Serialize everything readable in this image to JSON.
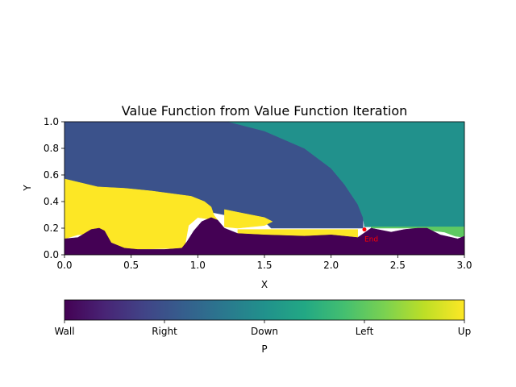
{
  "chart_data": {
    "type": "heatmap",
    "title": "Value Function from Value Function Iteration",
    "xlabel": "X",
    "ylabel": "Y",
    "xlim": [
      0.0,
      3.0
    ],
    "ylim": [
      0.0,
      1.0
    ],
    "x_ticks": [
      "0.0",
      "0.5",
      "1.0",
      "1.5",
      "2.0",
      "2.5",
      "3.0"
    ],
    "y_ticks": [
      "0.0",
      "0.2",
      "0.4",
      "0.6",
      "0.8",
      "1.0"
    ],
    "grid": false,
    "colorbar": {
      "label": "P",
      "orientation": "horizontal",
      "categories": [
        "Wall",
        "Right",
        "Down",
        "Left",
        "Up"
      ],
      "colors": [
        "#440154",
        "#3b528b",
        "#21918c",
        "#5ec962",
        "#fde725"
      ]
    },
    "end_marker": {
      "label": "End",
      "x": 2.25,
      "y": 0.19,
      "color": "#ff0000"
    },
    "regions": [
      {
        "name": "Right",
        "color": "#3b528b",
        "polygon": [
          [
            0.0,
            1.0
          ],
          [
            1.23,
            1.0
          ],
          [
            1.5,
            0.93
          ],
          [
            1.8,
            0.8
          ],
          [
            2.0,
            0.65
          ],
          [
            2.1,
            0.53
          ],
          [
            2.2,
            0.38
          ],
          [
            2.24,
            0.28
          ],
          [
            2.24,
            0.2
          ],
          [
            1.55,
            0.2
          ],
          [
            1.5,
            0.25
          ],
          [
            1.2,
            0.3
          ],
          [
            1.0,
            0.34
          ],
          [
            0.85,
            0.36
          ],
          [
            0.3,
            0.35
          ],
          [
            0.0,
            0.35
          ]
        ]
      },
      {
        "name": "Down",
        "color": "#21918c",
        "polygon": [
          [
            1.23,
            1.0
          ],
          [
            3.0,
            1.0
          ],
          [
            3.0,
            0.21
          ],
          [
            2.25,
            0.21
          ],
          [
            2.24,
            0.28
          ],
          [
            2.2,
            0.38
          ],
          [
            2.1,
            0.53
          ],
          [
            2.0,
            0.65
          ],
          [
            1.8,
            0.8
          ],
          [
            1.5,
            0.93
          ]
        ]
      },
      {
        "name": "Left",
        "color": "#5ec962",
        "polygon": [
          [
            2.3,
            0.21
          ],
          [
            3.0,
            0.21
          ],
          [
            3.0,
            0.13
          ],
          [
            2.93,
            0.14
          ],
          [
            2.85,
            0.17
          ],
          [
            2.6,
            0.2
          ],
          [
            2.3,
            0.2
          ]
        ]
      },
      {
        "name": "Up",
        "color": "#fde725",
        "polygon": [
          [
            0.0,
            0.57
          ],
          [
            0.25,
            0.51
          ],
          [
            0.45,
            0.5
          ],
          [
            0.65,
            0.48
          ],
          [
            0.8,
            0.46
          ],
          [
            0.95,
            0.44
          ],
          [
            1.05,
            0.4
          ],
          [
            1.1,
            0.36
          ],
          [
            1.12,
            0.3
          ],
          [
            1.15,
            0.26
          ],
          [
            1.0,
            0.28
          ],
          [
            0.93,
            0.22
          ],
          [
            0.9,
            0.05
          ],
          [
            0.45,
            0.04
          ],
          [
            0.35,
            0.08
          ],
          [
            0.3,
            0.13
          ],
          [
            0.2,
            0.16
          ],
          [
            0.1,
            0.15
          ],
          [
            0.0,
            0.12
          ]
        ]
      },
      {
        "name": "Up",
        "color": "#fde725",
        "polygon": [
          [
            1.2,
            0.34
          ],
          [
            1.35,
            0.31
          ],
          [
            1.5,
            0.28
          ],
          [
            1.56,
            0.25
          ],
          [
            1.5,
            0.22
          ],
          [
            1.3,
            0.2
          ],
          [
            1.2,
            0.21
          ]
        ]
      },
      {
        "name": "Up",
        "color": "#fde725",
        "polygon": [
          [
            1.3,
            0.19
          ],
          [
            2.2,
            0.19
          ],
          [
            2.2,
            0.13
          ],
          [
            1.95,
            0.14
          ],
          [
            1.75,
            0.14
          ],
          [
            1.5,
            0.15
          ],
          [
            1.3,
            0.14
          ]
        ]
      },
      {
        "name": "Wall",
        "color": "#440154",
        "polygon": [
          [
            0.0,
            0.0
          ],
          [
            0.0,
            0.12
          ],
          [
            0.1,
            0.13
          ],
          [
            0.2,
            0.19
          ],
          [
            0.26,
            0.2
          ],
          [
            0.3,
            0.18
          ],
          [
            0.35,
            0.09
          ],
          [
            0.45,
            0.05
          ],
          [
            0.55,
            0.04
          ],
          [
            0.75,
            0.04
          ],
          [
            0.88,
            0.05
          ],
          [
            0.92,
            0.1
          ],
          [
            0.97,
            0.18
          ],
          [
            1.03,
            0.25
          ],
          [
            1.1,
            0.28
          ],
          [
            1.15,
            0.26
          ],
          [
            1.2,
            0.2
          ],
          [
            1.3,
            0.16
          ],
          [
            1.5,
            0.15
          ],
          [
            1.8,
            0.14
          ],
          [
            2.0,
            0.15
          ],
          [
            2.2,
            0.13
          ],
          [
            2.3,
            0.2
          ],
          [
            2.45,
            0.17
          ],
          [
            2.55,
            0.19
          ],
          [
            2.65,
            0.2
          ],
          [
            2.72,
            0.2
          ],
          [
            2.82,
            0.15
          ],
          [
            2.95,
            0.12
          ],
          [
            3.0,
            0.14
          ],
          [
            3.0,
            0.0
          ]
        ]
      }
    ]
  }
}
